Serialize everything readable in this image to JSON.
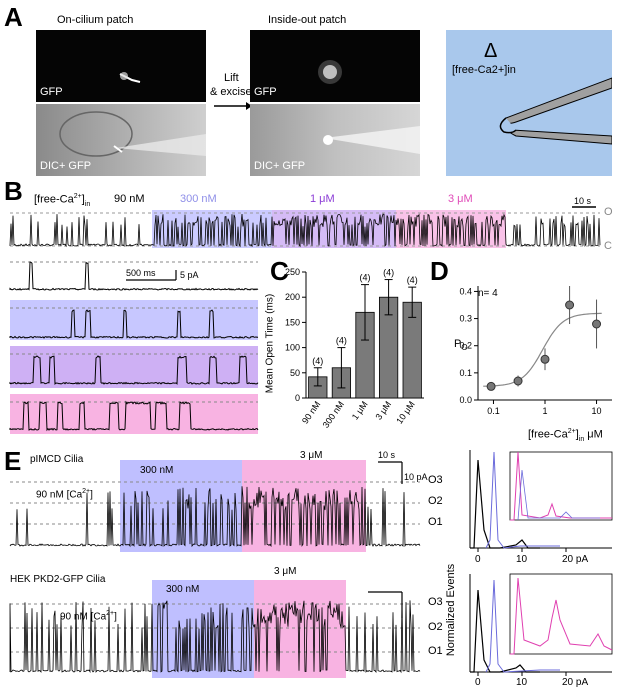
{
  "panel_letters": {
    "a": "A",
    "b": "B",
    "c": "C",
    "d": "D",
    "e": "E"
  },
  "panel_a": {
    "on_cilium_title": "On-cilium patch",
    "inside_out_title": "Inside-out patch",
    "gfp_label_1": "GFP",
    "dic_label_1": "DIC+ GFP",
    "gfp_label_2": "GFP",
    "dic_label_2": "DIC+ GFP",
    "arrow_label_line1": "Lift",
    "arrow_label_line2": "& excise",
    "delta": "Δ",
    "schematic_label": "[free-Ca2+]in",
    "colors": {
      "schematic_bg": "#a9c8ec",
      "pipette": "#a0a0a0"
    }
  },
  "panel_b": {
    "condition_label_prefix": "[free-Ca",
    "cond_90": "90 nM",
    "cond_300": "300 nM",
    "cond_1": "1 μM",
    "cond_3": "3 μM",
    "scale_time": "10 s",
    "state_open": "O",
    "state_closed": "C",
    "zoom_scale_time": "500 ms",
    "zoom_scale_amp": "5 pA",
    "colors": {
      "c90": "#ffffff",
      "c300": "#a9a9ff",
      "c1": "#b98ef0",
      "c3": "#f59ad8",
      "text300": "#8f8fe8",
      "text1": "#8b3bd6",
      "text3": "#e04bb8"
    }
  },
  "chart_data": [
    {
      "type": "bar",
      "panel": "C",
      "categories": [
        "90 nM",
        "300 nM",
        "1 μM",
        "3 μM",
        "10 μM"
      ],
      "values": [
        42,
        60,
        170,
        200,
        190
      ],
      "errors": [
        18,
        40,
        55,
        35,
        30
      ],
      "n_labels": [
        "(4)",
        "(4)",
        "(4)",
        "(4)",
        "(4)"
      ],
      "ylabel": "Mean Open Time (ms)",
      "ylim": [
        0,
        250
      ],
      "yticks": [
        0,
        50,
        100,
        150,
        200,
        250
      ]
    },
    {
      "type": "scatter",
      "panel": "D",
      "x": [
        0.09,
        0.3,
        1,
        3,
        10
      ],
      "y": [
        0.05,
        0.07,
        0.15,
        0.35,
        0.28
      ],
      "errors": [
        0.01,
        0.02,
        0.04,
        0.07,
        0.09
      ],
      "annotation": "n= 4",
      "ylabel": "PO",
      "xlabel": "[free-Ca2+]in μM",
      "xscale": "log",
      "xticks": [
        "0.1",
        "1",
        "10"
      ],
      "yticks": [
        "0.0",
        "0.1",
        "0.2",
        "0.3",
        "0.4"
      ],
      "ylim": [
        0,
        0.42
      ],
      "fit": "sigmoid"
    }
  ],
  "panel_e": {
    "title_top": "pIMCD Cilia",
    "title_bottom": "HEK PKD2-GFP Cilia",
    "cond_300_top": "300 nM",
    "cond_3_top": "3 μM",
    "cond_90_top": "90 nM [Ca",
    "cond_300_bot": "300 nM",
    "cond_3_bot": "3 μM",
    "cond_90_bot": "90 nM [Ca",
    "scale_time": "10 s",
    "scale_amp": "10 pA",
    "o3": "O3",
    "o2": "O2",
    "o1": "O1",
    "hist_ylabel": "Normalized Events",
    "hist_ticks": [
      "0",
      "10",
      "20 pA"
    ]
  }
}
